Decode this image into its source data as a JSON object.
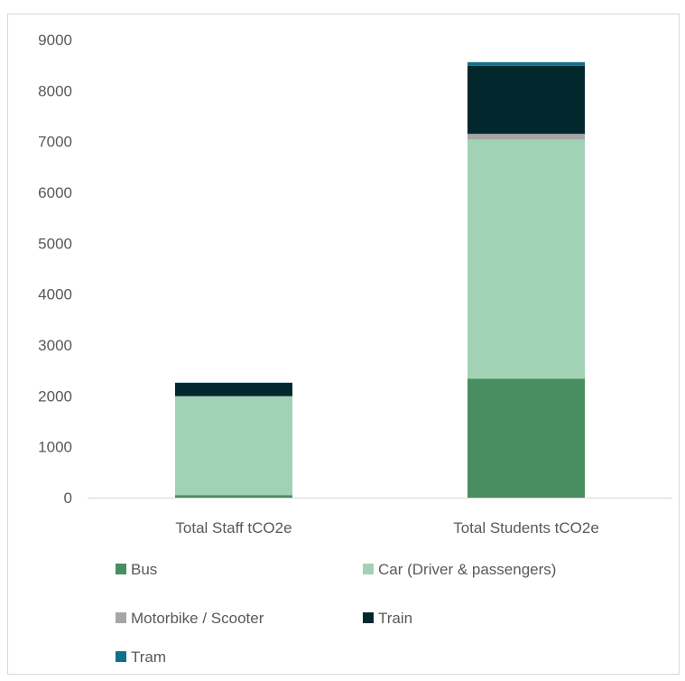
{
  "chart_data": {
    "type": "bar",
    "stacked": true,
    "categories": [
      "Total Staff tCO2e",
      "Total Students tCO2e"
    ],
    "series": [
      {
        "name": "Bus",
        "values": [
          50,
          2340
        ],
        "color": "#488e61"
      },
      {
        "name": "Car (Driver & passengers)",
        "values": [
          1940,
          4700
        ],
        "color": "#a2d2b5"
      },
      {
        "name": "Motorbike / Scooter",
        "values": [
          5,
          110
        ],
        "color": "#a6a6a6"
      },
      {
        "name": "Train",
        "values": [
          260,
          1340
        ],
        "color": "#02282e"
      },
      {
        "name": "Tram",
        "values": [
          5,
          70
        ],
        "color": "#11718c"
      }
    ],
    "ylim": [
      0,
      9000
    ],
    "yticks": [
      "0",
      "1000",
      "2000",
      "3000",
      "4000",
      "5000",
      "6000",
      "7000",
      "8000",
      "9000"
    ],
    "grid": false,
    "legend": "bottom",
    "title": "",
    "xlabel": "",
    "ylabel": ""
  }
}
